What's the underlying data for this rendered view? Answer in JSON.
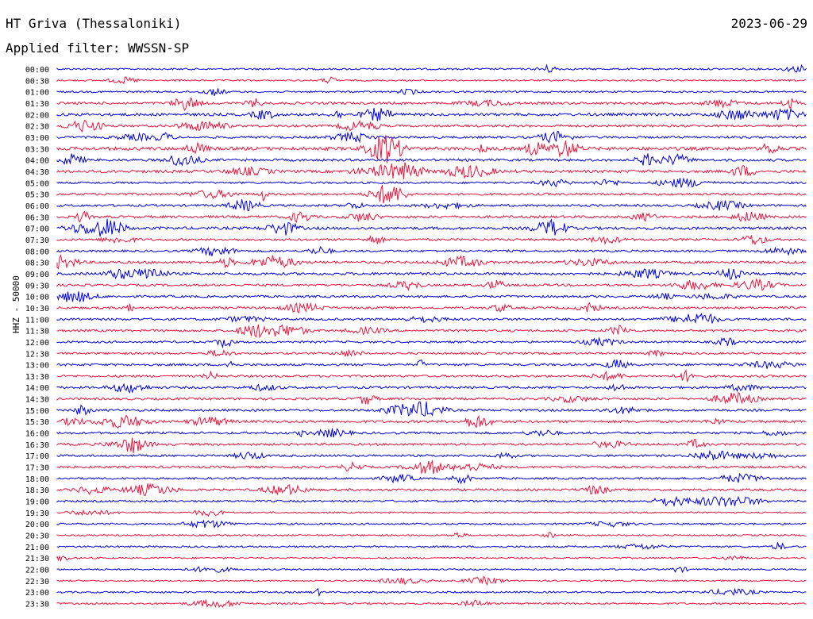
{
  "header": {
    "station": "HT Griva (Thessaloniki)",
    "date": "2023-06-29",
    "filter": "Applied filter: WWSSN-SP",
    "channel": "HHZ - 50000"
  },
  "colors": {
    "trace_a": "#0000e0",
    "trace_b": "#f0143c",
    "background": "#ffffff",
    "text": "#000000"
  },
  "chart_data": {
    "type": "line",
    "subtype": "helicorder",
    "title": "HT Griva (Thessaloniki)",
    "ylabel": "HHZ - 50000",
    "grid": false,
    "row_labels": [
      "00:00",
      "00:30",
      "01:00",
      "01:30",
      "02:00",
      "02:30",
      "03:00",
      "03:30",
      "04:00",
      "04:30",
      "05:00",
      "05:30",
      "06:00",
      "06:30",
      "07:00",
      "07:30",
      "08:00",
      "08:30",
      "09:00",
      "09:30",
      "10:00",
      "10:30",
      "11:00",
      "11:30",
      "12:00",
      "12:30",
      "13:00",
      "13:30",
      "14:00",
      "14:30",
      "15:00",
      "15:30",
      "16:00",
      "16:30",
      "17:00",
      "17:30",
      "18:00",
      "18:30",
      "19:00",
      "19:30",
      "20:00",
      "20:30",
      "21:00",
      "21:30",
      "22:00",
      "22:30",
      "23:00",
      "23:30"
    ],
    "row_colors": [
      "trace_a",
      "trace_b"
    ],
    "row_activity": [
      0.3,
      0.2,
      0.3,
      0.6,
      0.7,
      0.5,
      0.5,
      0.9,
      0.6,
      0.7,
      0.4,
      0.5,
      0.5,
      0.6,
      0.7,
      0.5,
      0.4,
      0.6,
      0.6,
      0.5,
      0.5,
      0.5,
      0.5,
      0.5,
      0.4,
      0.4,
      0.5,
      0.5,
      0.5,
      0.5,
      0.5,
      0.6,
      0.5,
      0.5,
      0.5,
      0.5,
      0.4,
      0.5,
      0.4,
      0.2,
      0.3,
      0.2,
      0.3,
      0.2,
      0.2,
      0.2,
      0.3,
      0.3
    ]
  }
}
